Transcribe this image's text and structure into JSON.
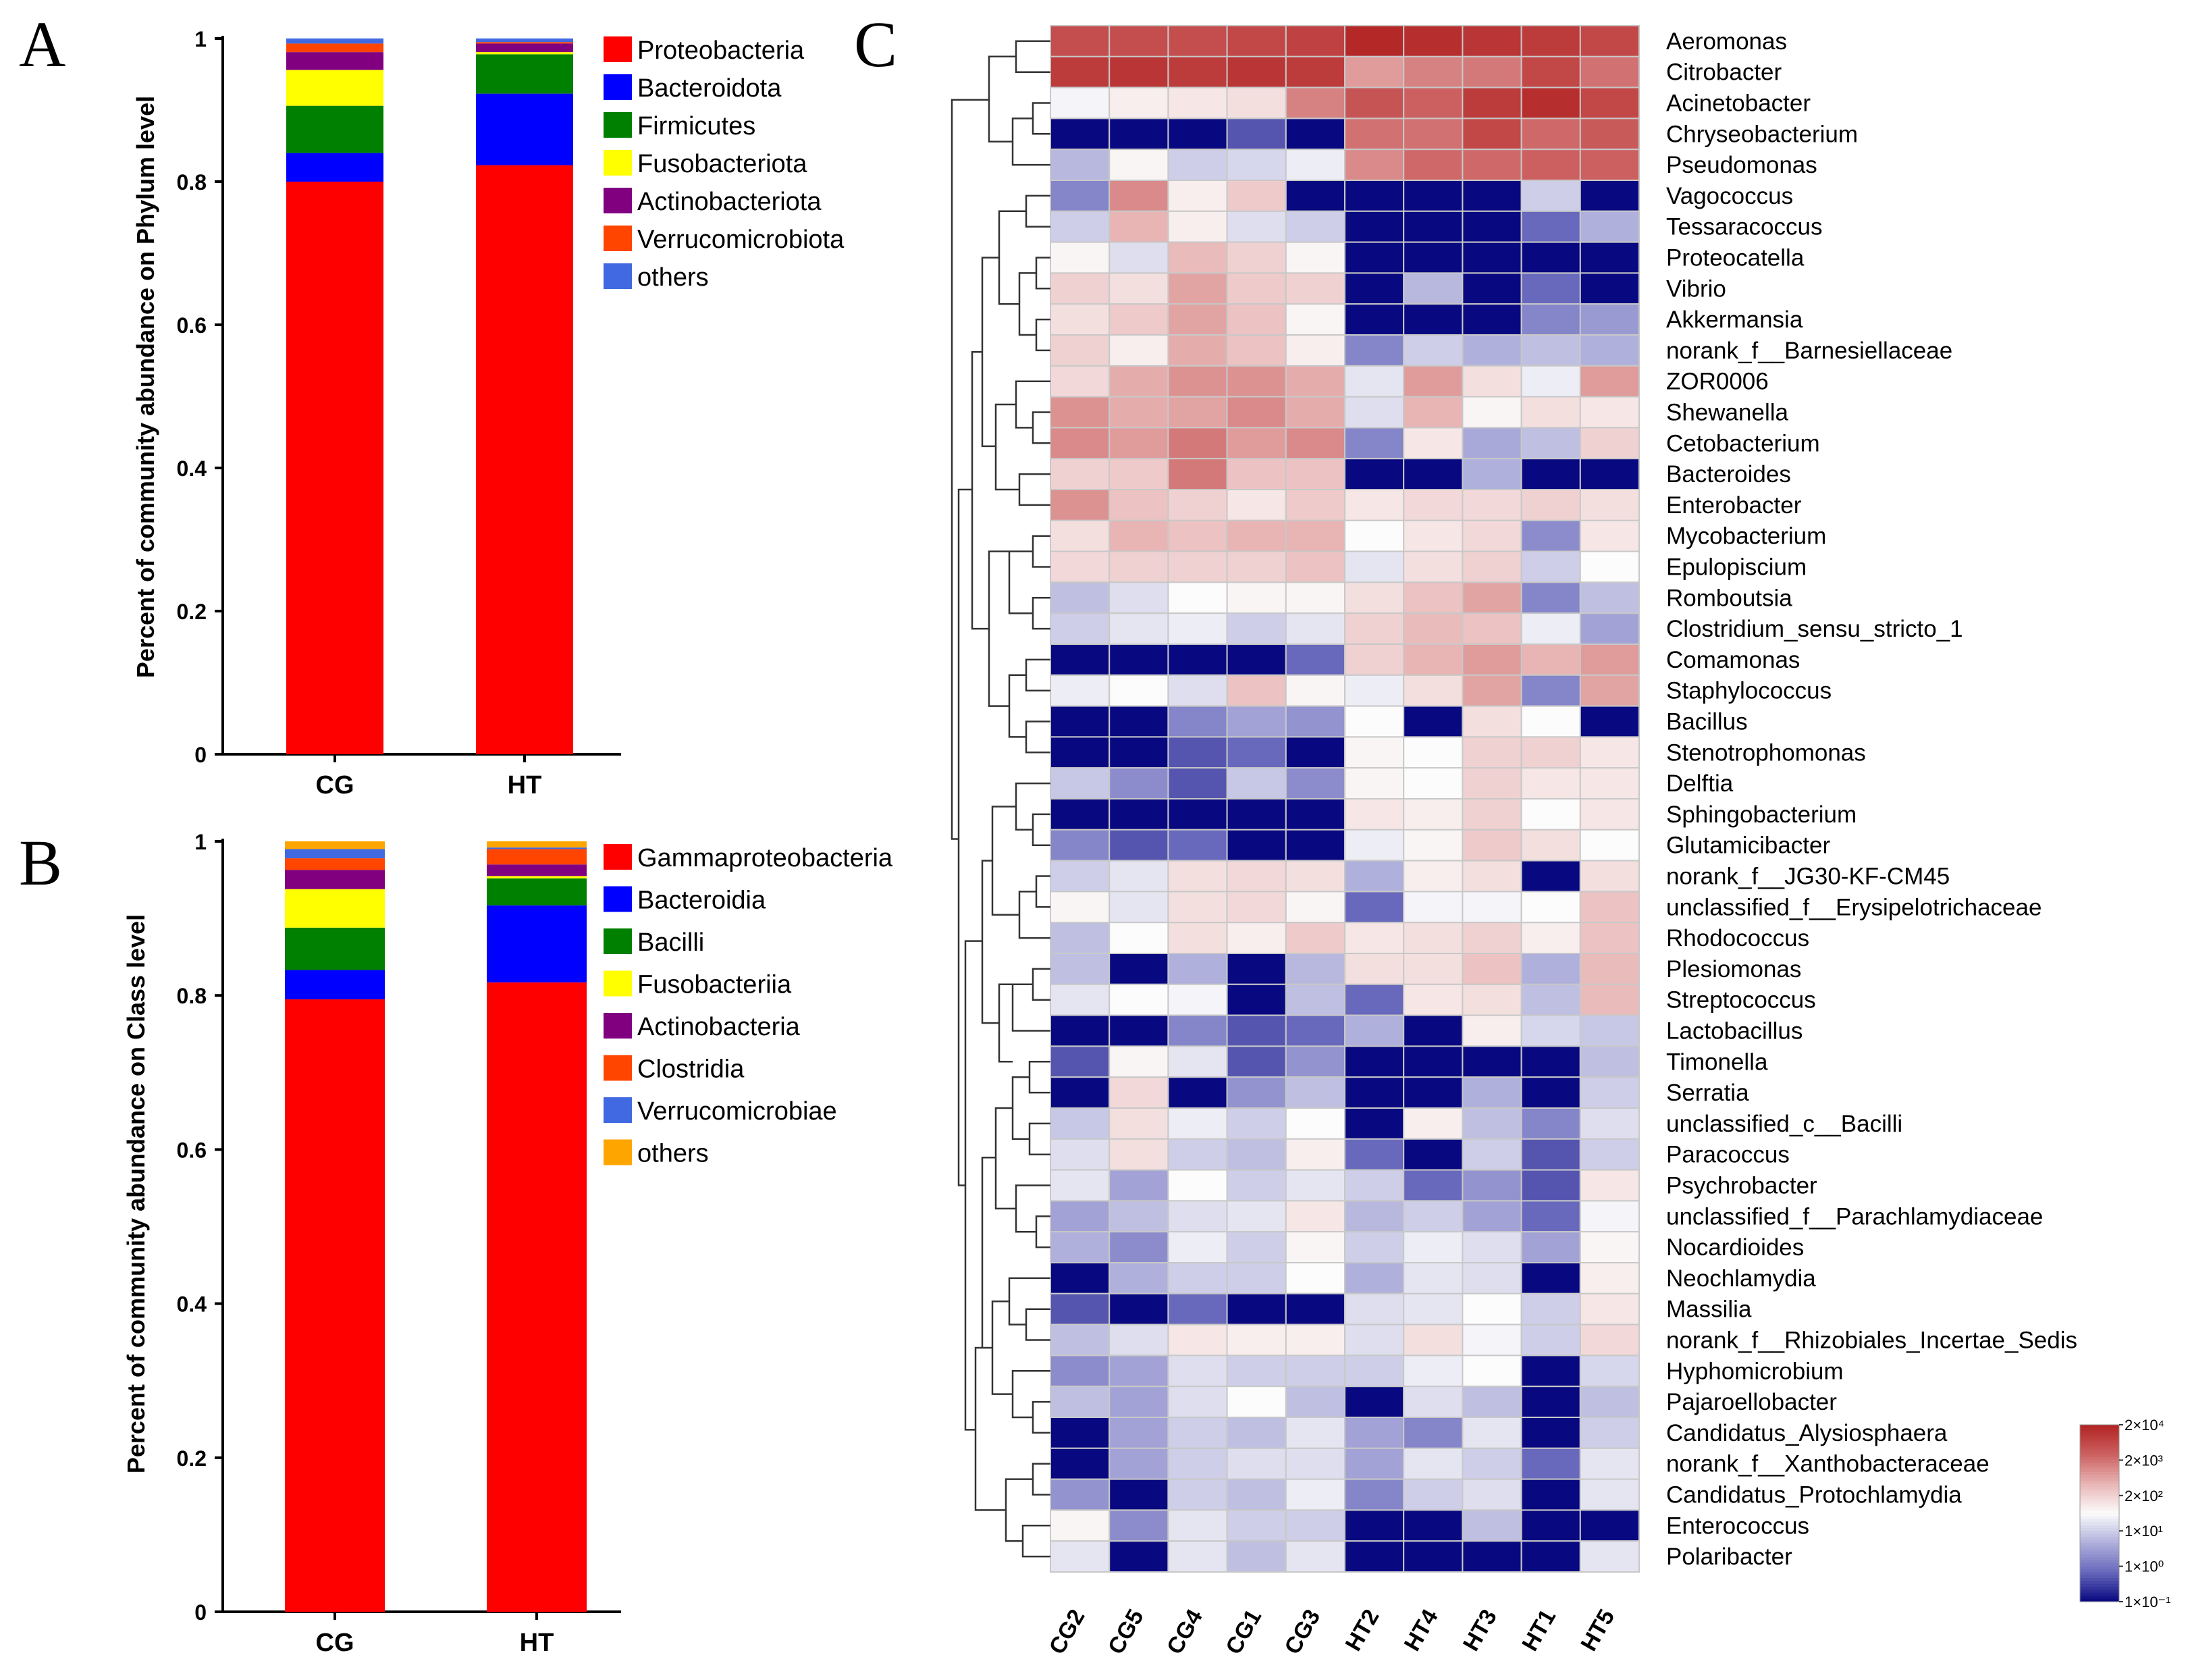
{
  "panels": {
    "a": "A",
    "b": "B",
    "c": "C"
  },
  "chart_data": [
    {
      "type": "bar",
      "stacked": true,
      "ylabel": "Percent of community abundance on Phylum level",
      "ylim": [
        0,
        1
      ],
      "yticks": [
        "0",
        "0.2",
        "0.4",
        "0.6",
        "0.8",
        "1"
      ],
      "categories": [
        "CG",
        "HT"
      ],
      "series": [
        {
          "name": "Proteobacteria",
          "color": "#ff0000",
          "values": [
            0.8,
            0.823
          ]
        },
        {
          "name": "Bacteroidota",
          "color": "#0000ff",
          "values": [
            0.04,
            0.1
          ]
        },
        {
          "name": "Firmicutes",
          "color": "#008000",
          "values": [
            0.066,
            0.055
          ]
        },
        {
          "name": "Fusobacteriota",
          "color": "#ffff00",
          "values": [
            0.05,
            0.003
          ]
        },
        {
          "name": "Actinobacteriota",
          "color": "#800080",
          "values": [
            0.025,
            0.012
          ]
        },
        {
          "name": "Verrucomicrobiota",
          "color": "#ff4500",
          "values": [
            0.012,
            0.002
          ]
        },
        {
          "name": "others",
          "color": "#4169e1",
          "values": [
            0.007,
            0.005
          ]
        }
      ]
    },
    {
      "type": "bar",
      "stacked": true,
      "ylabel": "Percent of community abundance on Class level",
      "ylim": [
        0,
        1
      ],
      "yticks": [
        "0",
        "0.2",
        "0.4",
        "0.6",
        "0.8",
        "1"
      ],
      "categories": [
        "CG",
        "HT"
      ],
      "series": [
        {
          "name": "Gammaproteobacteria",
          "color": "#ff0000",
          "values": [
            0.795,
            0.817
          ]
        },
        {
          "name": "Bacteroidia",
          "color": "#0000ff",
          "values": [
            0.038,
            0.1
          ]
        },
        {
          "name": "Bacilli",
          "color": "#008000",
          "values": [
            0.055,
            0.035
          ]
        },
        {
          "name": "Fusobacteriia",
          "color": "#ffff00",
          "values": [
            0.05,
            0.003
          ]
        },
        {
          "name": "Actinobacteria",
          "color": "#800080",
          "values": [
            0.025,
            0.015
          ]
        },
        {
          "name": "Clostridia",
          "color": "#ff4500",
          "values": [
            0.015,
            0.02
          ]
        },
        {
          "name": "Verrucomicrobiae",
          "color": "#4169e1",
          "values": [
            0.012,
            0.002
          ]
        },
        {
          "name": "others",
          "color": "#ffa500",
          "values": [
            0.01,
            0.008
          ]
        }
      ]
    },
    {
      "type": "heatmap",
      "samples": [
        "CG2",
        "CG5",
        "CG4",
        "CG1",
        "CG3",
        "HT2",
        "HT4",
        "HT3",
        "HT1",
        "HT5"
      ],
      "genera": [
        "Aeromonas",
        "Citrobacter",
        "Acinetobacter",
        "Chryseobacterium",
        "Pseudomonas",
        "Vagococcus",
        "Tessaracoccus",
        "Proteocatella",
        "Vibrio",
        "Akkermansia",
        "norank_f__Barnesiellaceae",
        "ZOR0006",
        "Shewanella",
        "Cetobacterium",
        "Bacteroides",
        "Enterobacter",
        "Mycobacterium",
        "Epulopiscium",
        "Romboutsia",
        "Clostridium_sensu_stricto_1",
        "Comamonas",
        "Staphylococcus",
        "Bacillus",
        "Stenotrophomonas",
        "Delftia",
        "Sphingobacterium",
        "Glutamicibacter",
        "norank_f__JG30-KF-CM45",
        "unclassified_f__Erysipelotrichaceae",
        "Rhodococcus",
        "Plesiomonas",
        "Streptococcus",
        "Lactobacillus",
        "Timonella",
        "Serratia",
        "unclassified_c__Bacilli",
        "Paracoccus",
        "Psychrobacter",
        "unclassified_f__Parachlamydiaceae",
        "Nocardioides",
        "Neochlamydia",
        "Massilia",
        "norank_f__Rhizobiales_Incertae_Sedis",
        "Hyphomicrobium",
        "Pajaroellobacter",
        "Candidatus_Alysiosphaera",
        "norank_f__Xanthobacteraceae",
        "Candidatus_Protochlamydia",
        "Enterococcus",
        "Polaribacter"
      ],
      "scale_note": "values are log-scaled abundance levels, -3 (dark blue) to 3 (dark red)",
      "values": [
        [
          2.3,
          2.3,
          2.3,
          2.4,
          2.5,
          2.9,
          2.8,
          2.7,
          2.6,
          2.4
        ],
        [
          2.6,
          2.7,
          2.6,
          2.7,
          2.6,
          1.3,
          1.6,
          1.7,
          2.4,
          1.8
        ],
        [
          -0.1,
          0.2,
          0.3,
          0.4,
          1.6,
          2.2,
          2.0,
          2.6,
          2.8,
          2.4
        ],
        [
          -3,
          -3,
          -3,
          -2.2,
          -3,
          1.8,
          1.8,
          2.4,
          1.9,
          2.1
        ],
        [
          -0.9,
          0.1,
          -0.6,
          -0.5,
          -0.2,
          1.5,
          1.9,
          1.9,
          2.0,
          2.0
        ],
        [
          -1.6,
          1.5,
          0.2,
          0.7,
          -3,
          -3,
          -3,
          -3,
          -0.6,
          -3
        ],
        [
          -0.6,
          1.0,
          0.2,
          -0.4,
          -0.6,
          -3,
          -3,
          -3,
          -2.0,
          -1.0
        ],
        [
          0.1,
          -0.4,
          0.9,
          0.6,
          0.1,
          -3,
          -3,
          -3,
          -3,
          -3
        ],
        [
          0.6,
          0.4,
          1.2,
          0.7,
          0.6,
          -3,
          -0.9,
          -3,
          -2.0,
          -3
        ],
        [
          0.4,
          0.7,
          1.2,
          0.8,
          0.1,
          -3,
          -3,
          -3,
          -1.6,
          -1.3
        ],
        [
          0.6,
          0.2,
          1.1,
          0.8,
          0.2,
          -1.6,
          -0.6,
          -1.0,
          -0.8,
          -1.0
        ],
        [
          0.5,
          1.1,
          1.4,
          1.4,
          1.1,
          -0.3,
          1.3,
          0.4,
          -0.2,
          1.3
        ],
        [
          1.4,
          1.1,
          1.2,
          1.5,
          1.1,
          -0.4,
          1.0,
          0.1,
          0.4,
          0.3
        ],
        [
          1.5,
          1.3,
          1.7,
          1.3,
          1.5,
          -1.6,
          0.3,
          -1.1,
          -0.8,
          0.6
        ],
        [
          0.6,
          0.7,
          1.7,
          0.8,
          0.8,
          -3,
          -3,
          -1.0,
          -3,
          -3
        ],
        [
          1.4,
          0.8,
          0.6,
          0.3,
          0.7,
          0.3,
          0.5,
          0.5,
          0.6,
          0.4
        ],
        [
          0.4,
          1.0,
          0.8,
          1.0,
          1.0,
          0.0,
          0.3,
          0.5,
          -1.5,
          0.3
        ],
        [
          0.5,
          0.6,
          0.6,
          0.6,
          0.8,
          -0.3,
          0.4,
          0.6,
          -0.6,
          0.0
        ],
        [
          -0.8,
          -0.4,
          0.0,
          0.1,
          0.1,
          0.4,
          0.8,
          1.2,
          -1.6,
          -0.8
        ],
        [
          -0.6,
          -0.3,
          -0.2,
          -0.6,
          -0.3,
          0.6,
          0.9,
          0.8,
          -0.2,
          -1.2
        ],
        [
          -3,
          -3,
          -3,
          -3,
          -2.0,
          0.6,
          1.0,
          1.3,
          1.0,
          1.3
        ],
        [
          -0.2,
          0.0,
          -0.4,
          0.8,
          0.1,
          -0.2,
          0.4,
          1.2,
          -1.6,
          1.2
        ],
        [
          -3,
          -3,
          -1.6,
          -1.2,
          -1.4,
          0.0,
          -3,
          0.4,
          0.0,
          -3
        ],
        [
          -3,
          -3,
          -2.2,
          -2.0,
          -3,
          0.1,
          0.0,
          0.6,
          0.6,
          0.3
        ],
        [
          -0.7,
          -1.5,
          -2.2,
          -0.7,
          -1.5,
          0.1,
          0.0,
          0.6,
          0.3,
          0.3
        ],
        [
          -3,
          -3,
          -3,
          -3,
          -3,
          0.3,
          0.2,
          0.6,
          0.0,
          0.3
        ],
        [
          -1.6,
          -2.2,
          -2.0,
          -3,
          -3,
          -0.2,
          0.1,
          0.7,
          0.4,
          0.0
        ],
        [
          -0.6,
          -0.3,
          0.4,
          0.5,
          0.4,
          -1.0,
          0.2,
          0.4,
          -3,
          0.4
        ],
        [
          0.1,
          -0.3,
          0.4,
          0.5,
          0.1,
          -2.0,
          -0.1,
          -0.1,
          0.0,
          0.8
        ],
        [
          -0.8,
          0.0,
          0.4,
          0.2,
          0.7,
          0.3,
          0.4,
          0.6,
          0.2,
          0.8
        ],
        [
          -0.8,
          -3,
          -1.0,
          -3,
          -0.9,
          0.4,
          0.4,
          0.8,
          -1.0,
          0.9
        ],
        [
          -0.3,
          0.0,
          -0.1,
          -3,
          -0.8,
          -2.0,
          0.3,
          0.4,
          -0.8,
          0.9
        ],
        [
          -3,
          -3,
          -1.6,
          -2.2,
          -2.0,
          -1.0,
          -3,
          0.2,
          -0.5,
          -0.7
        ],
        [
          -2.2,
          0.1,
          -0.3,
          -2.2,
          -1.4,
          -3,
          -3,
          -3,
          -3,
          -0.8
        ],
        [
          -3,
          0.5,
          -3,
          -1.4,
          -0.8,
          -3,
          -3,
          -1.0,
          -3,
          -0.6
        ],
        [
          -0.7,
          0.4,
          -0.2,
          -0.6,
          0.0,
          -3,
          0.2,
          -0.8,
          -1.6,
          -0.4
        ],
        [
          -0.4,
          0.4,
          -0.6,
          -0.8,
          0.2,
          -2.0,
          -3,
          -0.6,
          -2.2,
          -0.6
        ],
        [
          -0.3,
          -1.2,
          0.0,
          -0.6,
          -0.3,
          -0.6,
          -2.0,
          -1.4,
          -2.2,
          0.3
        ],
        [
          -1.2,
          -0.8,
          -0.4,
          -0.3,
          0.3,
          -0.9,
          -0.6,
          -1.2,
          -2.0,
          -0.1
        ],
        [
          -1.0,
          -1.5,
          -0.2,
          -0.6,
          0.1,
          -0.6,
          -0.2,
          -0.4,
          -1.2,
          0.1
        ],
        [
          -3,
          -1.0,
          -0.6,
          -0.6,
          0.0,
          -1.0,
          -0.3,
          -0.4,
          -3,
          0.2
        ],
        [
          -2.2,
          -3,
          -2.0,
          -3,
          -3,
          -0.4,
          -0.3,
          0.0,
          -0.6,
          0.3
        ],
        [
          -0.8,
          -0.4,
          0.3,
          0.2,
          0.2,
          -0.4,
          0.4,
          -0.1,
          -0.6,
          0.5
        ],
        [
          -1.5,
          -1.2,
          -0.4,
          -0.6,
          -0.6,
          -0.6,
          -0.2,
          0.0,
          -3,
          -0.5
        ],
        [
          -0.8,
          -1.2,
          -0.4,
          0.0,
          -0.8,
          -3,
          -0.4,
          -0.8,
          -3,
          -0.8
        ],
        [
          -3,
          -1.2,
          -0.6,
          -0.8,
          -0.3,
          -1.2,
          -1.6,
          -0.3,
          -3,
          -0.6
        ],
        [
          -3,
          -1.2,
          -0.6,
          -0.4,
          -0.4,
          -1.2,
          -0.3,
          -0.6,
          -2.0,
          -0.3
        ],
        [
          -1.4,
          -3,
          -0.6,
          -0.8,
          -0.2,
          -1.6,
          -0.6,
          -0.4,
          -3,
          -0.3
        ],
        [
          0.1,
          -1.5,
          -0.3,
          -0.6,
          -0.6,
          -3,
          -3,
          -0.8,
          -3,
          -3
        ],
        [
          -0.3,
          -3,
          -0.3,
          -0.8,
          -0.3,
          -3,
          -3,
          -3,
          -3,
          -0.3
        ]
      ],
      "colorbar_labels": [
        "2×10⁴",
        "2×10³",
        "2×10²",
        "1×10¹",
        "1×10⁰",
        "1×10⁻¹"
      ]
    }
  ]
}
